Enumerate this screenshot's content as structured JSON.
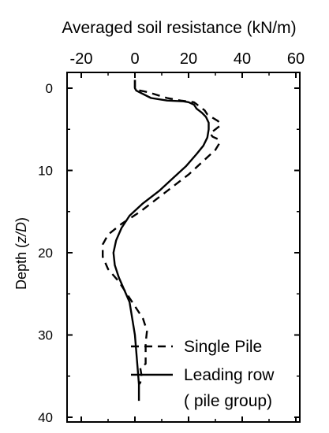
{
  "chart_data": {
    "type": "line",
    "title": "Averaged soil resistance (kN/m)",
    "xlabel": "Averaged soil resistance (kN/m)",
    "ylabel_prefix": "Depth (",
    "ylabel_var": "z/D",
    "ylabel_suffix": ")",
    "xlim": [
      -20,
      60
    ],
    "ylim": [
      0,
      40
    ],
    "y_inverted": true,
    "x_axis_position": "top",
    "x_ticks": [
      -20,
      0,
      20,
      40,
      60
    ],
    "y_ticks": [
      0,
      10,
      20,
      30,
      40
    ],
    "grid": false,
    "legend_position": "bottom-right",
    "series": [
      {
        "name": "Single Pile",
        "style": "dashed",
        "color": "#000000",
        "points": [
          [
            0,
            -1
          ],
          [
            0,
            0
          ],
          [
            0.5,
            0.2
          ],
          [
            5,
            0.5
          ],
          [
            8,
            0.8
          ],
          [
            12,
            1.2
          ],
          [
            17,
            1.5
          ],
          [
            22,
            1.7
          ],
          [
            24,
            2.2
          ],
          [
            26,
            2.7
          ],
          [
            27,
            3.2
          ],
          [
            28.5,
            3.5
          ],
          [
            31,
            4.0
          ],
          [
            32,
            4.5
          ],
          [
            30,
            5.0
          ],
          [
            28,
            5.5
          ],
          [
            29,
            5.9
          ],
          [
            31,
            6.2
          ],
          [
            31.5,
            6.7
          ],
          [
            30,
            7.5
          ],
          [
            26,
            8.7
          ],
          [
            20,
            10.5
          ],
          [
            14,
            12.0
          ],
          [
            8,
            13.5
          ],
          [
            2,
            15.0
          ],
          [
            -5,
            16.5
          ],
          [
            -10,
            17.8
          ],
          [
            -12,
            19.0
          ],
          [
            -12,
            20.5
          ],
          [
            -10,
            22.0
          ],
          [
            -6,
            23.5
          ],
          [
            -3,
            25.0
          ],
          [
            0,
            26.5
          ],
          [
            3,
            28.0
          ],
          [
            4.5,
            29.5
          ],
          [
            4,
            31.0
          ],
          [
            4,
            32.0
          ],
          [
            4,
            33.5
          ],
          [
            2,
            34.0
          ],
          [
            2.5,
            35.0
          ],
          [
            2,
            35.8
          ],
          [
            1.5,
            36.0
          ]
        ]
      },
      {
        "name": "Leading row\n( pile group)",
        "style": "solid",
        "color": "#000000",
        "points": [
          [
            0,
            -1
          ],
          [
            0,
            0
          ],
          [
            0.5,
            0.3
          ],
          [
            6,
            1.2
          ],
          [
            12,
            1.5
          ],
          [
            18,
            1.6
          ],
          [
            20,
            1.7
          ],
          [
            22,
            2.0
          ],
          [
            23,
            2.5
          ],
          [
            25,
            3.0
          ],
          [
            26.5,
            3.5
          ],
          [
            27.5,
            4.2
          ],
          [
            27.5,
            5.0
          ],
          [
            27,
            6.0
          ],
          [
            25.5,
            7.0
          ],
          [
            23,
            8.0
          ],
          [
            19,
            9.5
          ],
          [
            14,
            11.0
          ],
          [
            9,
            12.5
          ],
          [
            3,
            14.0
          ],
          [
            -2,
            15.5
          ],
          [
            -5,
            17.0
          ],
          [
            -7,
            18.5
          ],
          [
            -8,
            20.0
          ],
          [
            -7.5,
            21.5
          ],
          [
            -6,
            23.0
          ],
          [
            -4,
            24.5
          ],
          [
            -2,
            26.0
          ],
          [
            -1,
            28.0
          ],
          [
            0,
            30.0
          ],
          [
            0.5,
            32.0
          ],
          [
            1,
            34.0
          ],
          [
            1.5,
            36.0
          ],
          [
            1.5,
            38.0
          ]
        ]
      }
    ],
    "legend": [
      {
        "label": "Single Pile",
        "style": "dashed"
      },
      {
        "label": "Leading row",
        "style": "solid"
      },
      {
        "label": "( pile group)",
        "style": "none"
      }
    ]
  }
}
